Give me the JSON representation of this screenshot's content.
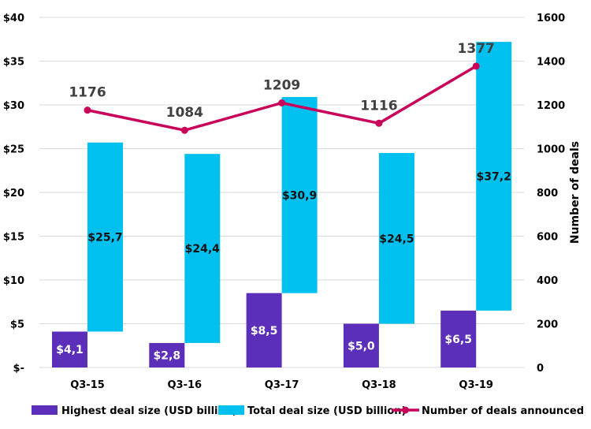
{
  "chart_data": {
    "type": "bar",
    "title": "",
    "categories": [
      "Q3-15",
      "Q3-16",
      "Q3-17",
      "Q3-18",
      "Q3-19"
    ],
    "series": [
      {
        "name": "Highest deal size (USD billion)",
        "type": "bar",
        "axis": "left",
        "color": "#5B2FB9",
        "values": [
          4.1,
          2.8,
          8.5,
          5.0,
          6.5
        ],
        "labels": [
          "$4,1",
          "$2,8",
          "$8,5",
          "$5,0",
          "$6,5"
        ]
      },
      {
        "name": "Total deal size (USD billion)",
        "type": "bar",
        "axis": "left",
        "color": "#00C0F0",
        "values": [
          25.7,
          24.4,
          30.9,
          24.5,
          37.2
        ],
        "labels": [
          "$25,7",
          "$24,4",
          "$30,9",
          "$24,5",
          "$37,2"
        ],
        "note": "drawn as a floating bar from the highest deal size up to the total"
      },
      {
        "name": "Number of deals announced",
        "type": "line",
        "axis": "right",
        "color": "#C8005A",
        "values": [
          1176,
          1084,
          1209,
          1116,
          1377
        ],
        "labels": [
          "1176",
          "1084",
          "1209",
          "1116",
          "1377"
        ]
      }
    ],
    "left_axis": {
      "ylim": [
        0,
        40
      ],
      "ticks": [
        0,
        5,
        10,
        15,
        20,
        25,
        30,
        35,
        40
      ],
      "tick_labels": [
        "$-",
        "$5",
        "$10",
        "$15",
        "$20",
        "$25",
        "$30",
        "$35",
        "$40"
      ],
      "label": ""
    },
    "right_axis": {
      "ylim": [
        0,
        1600
      ],
      "ticks": [
        0,
        200,
        400,
        600,
        800,
        1000,
        1200,
        1400,
        1600
      ],
      "tick_labels": [
        "0",
        "200",
        "400",
        "600",
        "800",
        "1000",
        "1200",
        "1400",
        "1600"
      ],
      "label": "Number of deals"
    },
    "xlabel": "",
    "grid": true,
    "legend": {
      "position": "bottom",
      "entries": [
        "Highest deal size (USD billion)",
        "Total deal size (USD billion)",
        "Number of deals announced"
      ]
    }
  }
}
